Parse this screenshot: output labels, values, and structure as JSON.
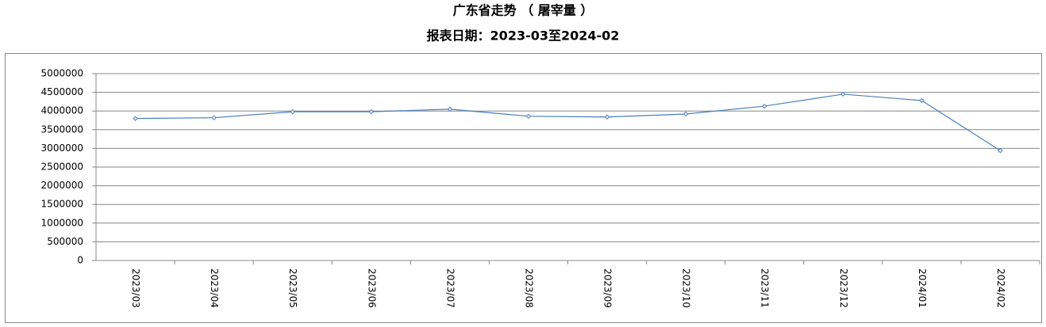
{
  "chart_data": {
    "type": "line",
    "title": "广东省走势 （ 屠宰量 ）",
    "subtitle": "报表日期：2023-03至2024-02",
    "categories": [
      "2023/03",
      "2023/04",
      "2023/05",
      "2023/06",
      "2023/07",
      "2023/08",
      "2023/09",
      "2023/10",
      "2023/11",
      "2023/12",
      "2024/01",
      "2024/02"
    ],
    "series": [
      {
        "color": "#4a7ebb",
        "values": [
          3800000,
          3820000,
          3980000,
          3980000,
          4050000,
          3860000,
          3840000,
          3920000,
          4130000,
          4450000,
          4280000,
          2940000
        ]
      }
    ],
    "ylim": [
      0,
      5000000
    ],
    "yticks": [
      0,
      500000,
      1000000,
      1500000,
      2000000,
      2500000,
      3000000,
      3500000,
      4000000,
      4500000,
      5000000
    ],
    "grid": true
  }
}
